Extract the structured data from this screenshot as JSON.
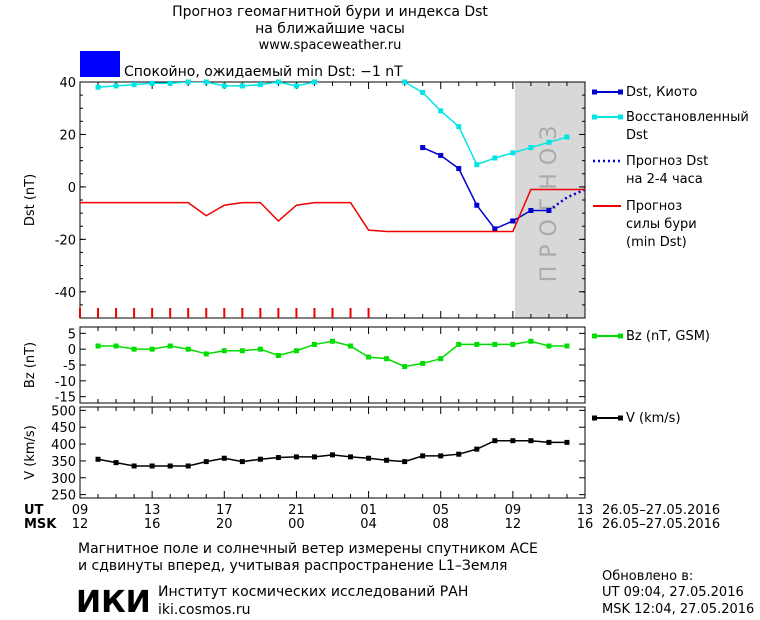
{
  "header": {
    "title_line1": "Прогноз геомагнитной бури и индекса Dst",
    "title_line2": "на ближайшие часы",
    "site": "www.spaceweather.ru",
    "status_text": "Спокойно, ожидаемый min Dst: −1 nT",
    "status_color": "#0000ff"
  },
  "forecast_band_label": "ПРОГНОЗ",
  "time_axis": {
    "ut_label": "UT",
    "msk_label": "MSK",
    "ut_ticks": [
      "09",
      "13",
      "17",
      "21",
      "01",
      "05",
      "09",
      "13"
    ],
    "msk_ticks": [
      "12",
      "16",
      "20",
      "00",
      "04",
      "08",
      "12",
      "16"
    ],
    "ut_range": "26.05–27.05.2016",
    "msk_range": "26.05–27.05.2016"
  },
  "footer": {
    "note_line1": "Магнитное поле и солнечный ветер измерены спутником ACE",
    "note_line2": "и сдвинуты вперед, учитывая распространение L1–Земля",
    "logo_text": "ИКИ",
    "institute": "Институт космических исследований РАН",
    "institute_url": "iki.cosmos.ru",
    "updated_label": "Обновлено в:",
    "updated_ut": "UT  09:04, 27.05.2016",
    "updated_msk": "MSK 12:04, 27.05.2016"
  },
  "chart_data": [
    {
      "type": "line",
      "panel": "dst",
      "ylabel": "Dst (nT)",
      "ylim": [
        -50,
        40
      ],
      "yticks": [
        -40,
        -20,
        0,
        20,
        40
      ],
      "xlim_hours": [
        0,
        28
      ],
      "forecast_start_hour": 24,
      "series": [
        {
          "name": "Dst, Киото",
          "color": "#0000cc",
          "x": [
            19,
            20,
            21,
            22,
            23,
            24
          ],
          "y": [
            15,
            12,
            7,
            -7,
            -16,
            -13
          ]
        },
        {
          "name": "Dst, Киото",
          "legend": false,
          "color": "#0000cc",
          "x": [
            24,
            25,
            26
          ],
          "y": [
            -13,
            -9,
            -9
          ]
        },
        {
          "name": "Восстановленный Dst",
          "color": "#00e5e5",
          "x": [
            1,
            2,
            3,
            4,
            5,
            6,
            7,
            8,
            9,
            10,
            11,
            12,
            13,
            14,
            15,
            16,
            17,
            18,
            19,
            20,
            21,
            22,
            23,
            24,
            25,
            26,
            27
          ],
          "y": [
            38,
            38.5,
            39,
            39.5,
            39.5,
            40,
            40,
            38.5,
            38.5,
            39,
            40,
            38.5,
            40,
            41,
            43,
            43,
            42,
            40,
            36,
            29,
            23,
            8.5,
            11,
            13,
            15,
            17,
            19
          ]
        },
        {
          "name": "Прогноз Dst на 2-4 часа",
          "color": "#0000cc",
          "x": [
            26,
            27,
            28
          ],
          "y": [
            -9,
            -4,
            -1
          ]
        },
        {
          "name": "Прогноз силы бури (min Dst)",
          "color": "#ee0000",
          "x": [
            0,
            6,
            7,
            8,
            9,
            10,
            11,
            12,
            13,
            14,
            15,
            16,
            17,
            18,
            19,
            20,
            21,
            22,
            23,
            24,
            25,
            26,
            27,
            28
          ],
          "y": [
            -6,
            -6,
            -11,
            -7,
            -6,
            -6,
            -13,
            -7,
            -6,
            -6,
            -6,
            -16.5,
            -17,
            -17,
            -17,
            -17,
            -17,
            -17,
            -17,
            -17,
            -1,
            -1,
            -1,
            -1
          ]
        }
      ]
    },
    {
      "type": "line",
      "panel": "bz",
      "ylabel": "Bz (nT)",
      "ylim": [
        -17,
        7
      ],
      "yticks": [
        5,
        0,
        -5,
        -10,
        -15
      ],
      "xlim_hours": [
        0,
        28
      ],
      "series": [
        {
          "name": "Bz (nT, GSM)",
          "color": "#00dd00",
          "x": [
            1,
            2,
            3,
            4,
            5,
            6,
            7,
            8,
            9,
            10,
            11,
            12,
            13,
            14,
            15,
            16,
            17,
            18,
            19,
            20,
            21,
            22,
            23,
            24,
            25,
            26,
            27
          ],
          "y": [
            1,
            1,
            0,
            0,
            1,
            0,
            -1.5,
            -0.5,
            -0.5,
            0,
            -2,
            -0.5,
            1.5,
            2.5,
            1,
            -2.5,
            -3,
            -5.5,
            -4.5,
            -3,
            1.5,
            1.5,
            1.5,
            1.5,
            2.5,
            1,
            1
          ]
        }
      ]
    },
    {
      "type": "line",
      "panel": "v",
      "ylabel": "V (km/s)",
      "ylim": [
        240,
        510
      ],
      "yticks": [
        500,
        450,
        400,
        350,
        300,
        250
      ],
      "xlim_hours": [
        0,
        28
      ],
      "series": [
        {
          "name": "V (km/s)",
          "color": "#000000",
          "x": [
            1,
            2,
            3,
            4,
            5,
            6,
            7,
            8,
            9,
            10,
            11,
            12,
            13,
            14,
            15,
            16,
            17,
            18,
            19,
            20,
            21,
            22,
            23,
            24,
            25,
            26,
            27
          ],
          "y": [
            355,
            345,
            335,
            335,
            335,
            335,
            348,
            358,
            348,
            355,
            360,
            362,
            362,
            368,
            362,
            358,
            352,
            348,
            365,
            365,
            370,
            385,
            410,
            410,
            410,
            405,
            405
          ]
        }
      ]
    }
  ]
}
